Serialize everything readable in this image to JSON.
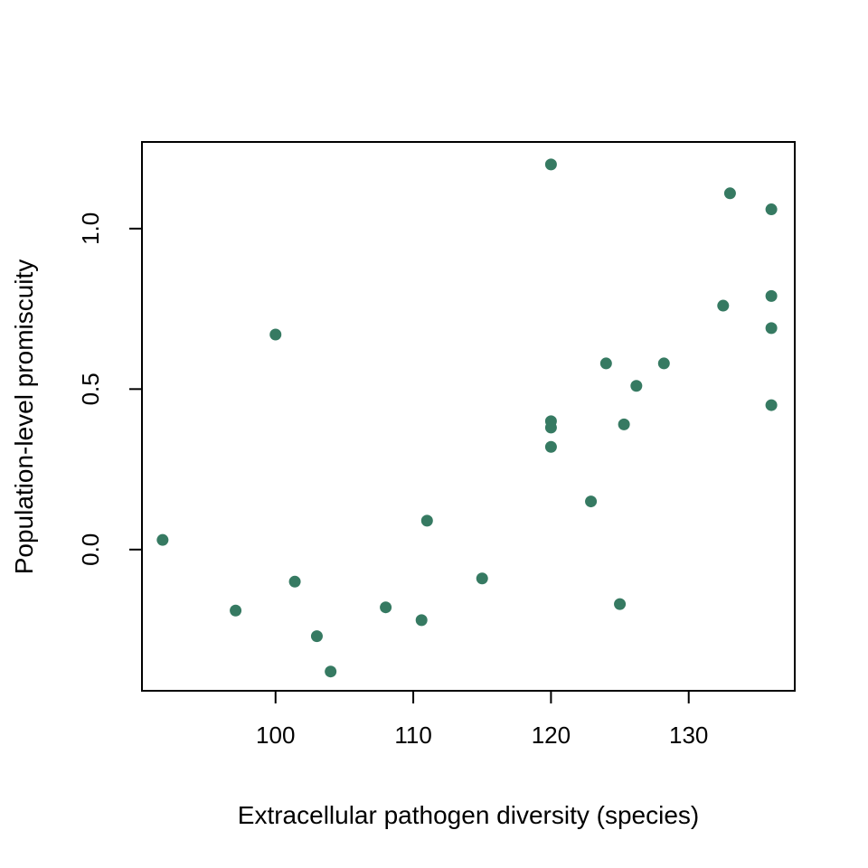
{
  "chart_data": {
    "type": "scatter",
    "title": "",
    "xlabel": "Extracellular pathogen diversity (species)",
    "ylabel": "Population-level promiscuity",
    "xlim": [
      90.3,
      137.7
    ],
    "ylim": [
      -0.44,
      1.27
    ],
    "x_ticks": [
      100,
      110,
      120,
      130
    ],
    "x_tick_labels": [
      "100",
      "110",
      "120",
      "130"
    ],
    "y_ticks": [
      0.0,
      0.5,
      1.0
    ],
    "y_tick_labels": [
      "0.0",
      "0.5",
      "1.0"
    ],
    "grid": false,
    "legend": false,
    "point_color": "#367a62",
    "points": [
      {
        "x": 91.8,
        "y": 0.03
      },
      {
        "x": 97.1,
        "y": -0.19
      },
      {
        "x": 100.0,
        "y": 0.67
      },
      {
        "x": 101.4,
        "y": -0.1
      },
      {
        "x": 103.0,
        "y": -0.27
      },
      {
        "x": 104.0,
        "y": -0.38
      },
      {
        "x": 108.0,
        "y": -0.18
      },
      {
        "x": 110.6,
        "y": -0.22
      },
      {
        "x": 111.0,
        "y": 0.09
      },
      {
        "x": 115.0,
        "y": -0.09
      },
      {
        "x": 120.0,
        "y": 1.2
      },
      {
        "x": 120.0,
        "y": 0.4
      },
      {
        "x": 120.0,
        "y": 0.38
      },
      {
        "x": 120.0,
        "y": 0.32
      },
      {
        "x": 122.9,
        "y": 0.15
      },
      {
        "x": 124.0,
        "y": 0.58
      },
      {
        "x": 125.0,
        "y": -0.17
      },
      {
        "x": 125.3,
        "y": 0.39
      },
      {
        "x": 126.2,
        "y": 0.51
      },
      {
        "x": 128.2,
        "y": 0.58
      },
      {
        "x": 132.5,
        "y": 0.76
      },
      {
        "x": 133.0,
        "y": 1.11
      },
      {
        "x": 136.0,
        "y": 1.06
      },
      {
        "x": 136.0,
        "y": 0.79
      },
      {
        "x": 136.0,
        "y": 0.69
      },
      {
        "x": 136.0,
        "y": 0.45
      }
    ]
  }
}
